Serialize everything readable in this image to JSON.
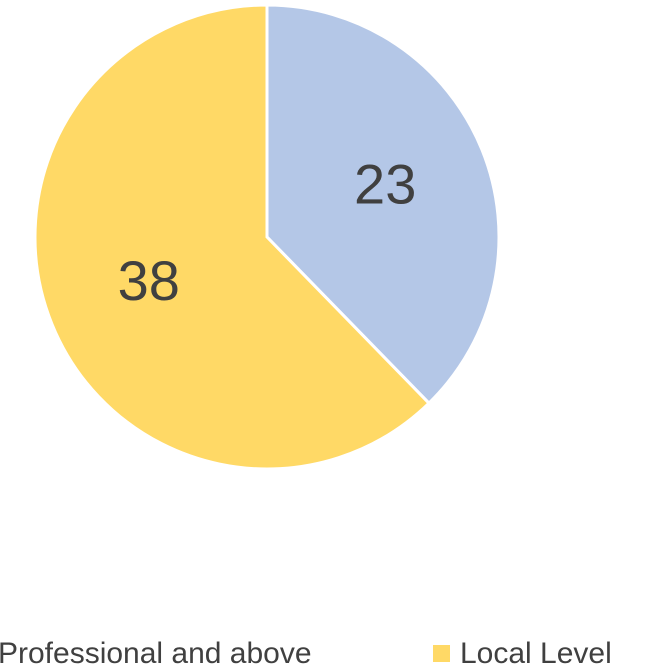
{
  "chart_data": {
    "type": "pie",
    "categories": [
      "Professional and above",
      "Local Level"
    ],
    "values": [
      23,
      38
    ],
    "colors": [
      "#b4c7e7",
      "#ffd966"
    ]
  }
}
